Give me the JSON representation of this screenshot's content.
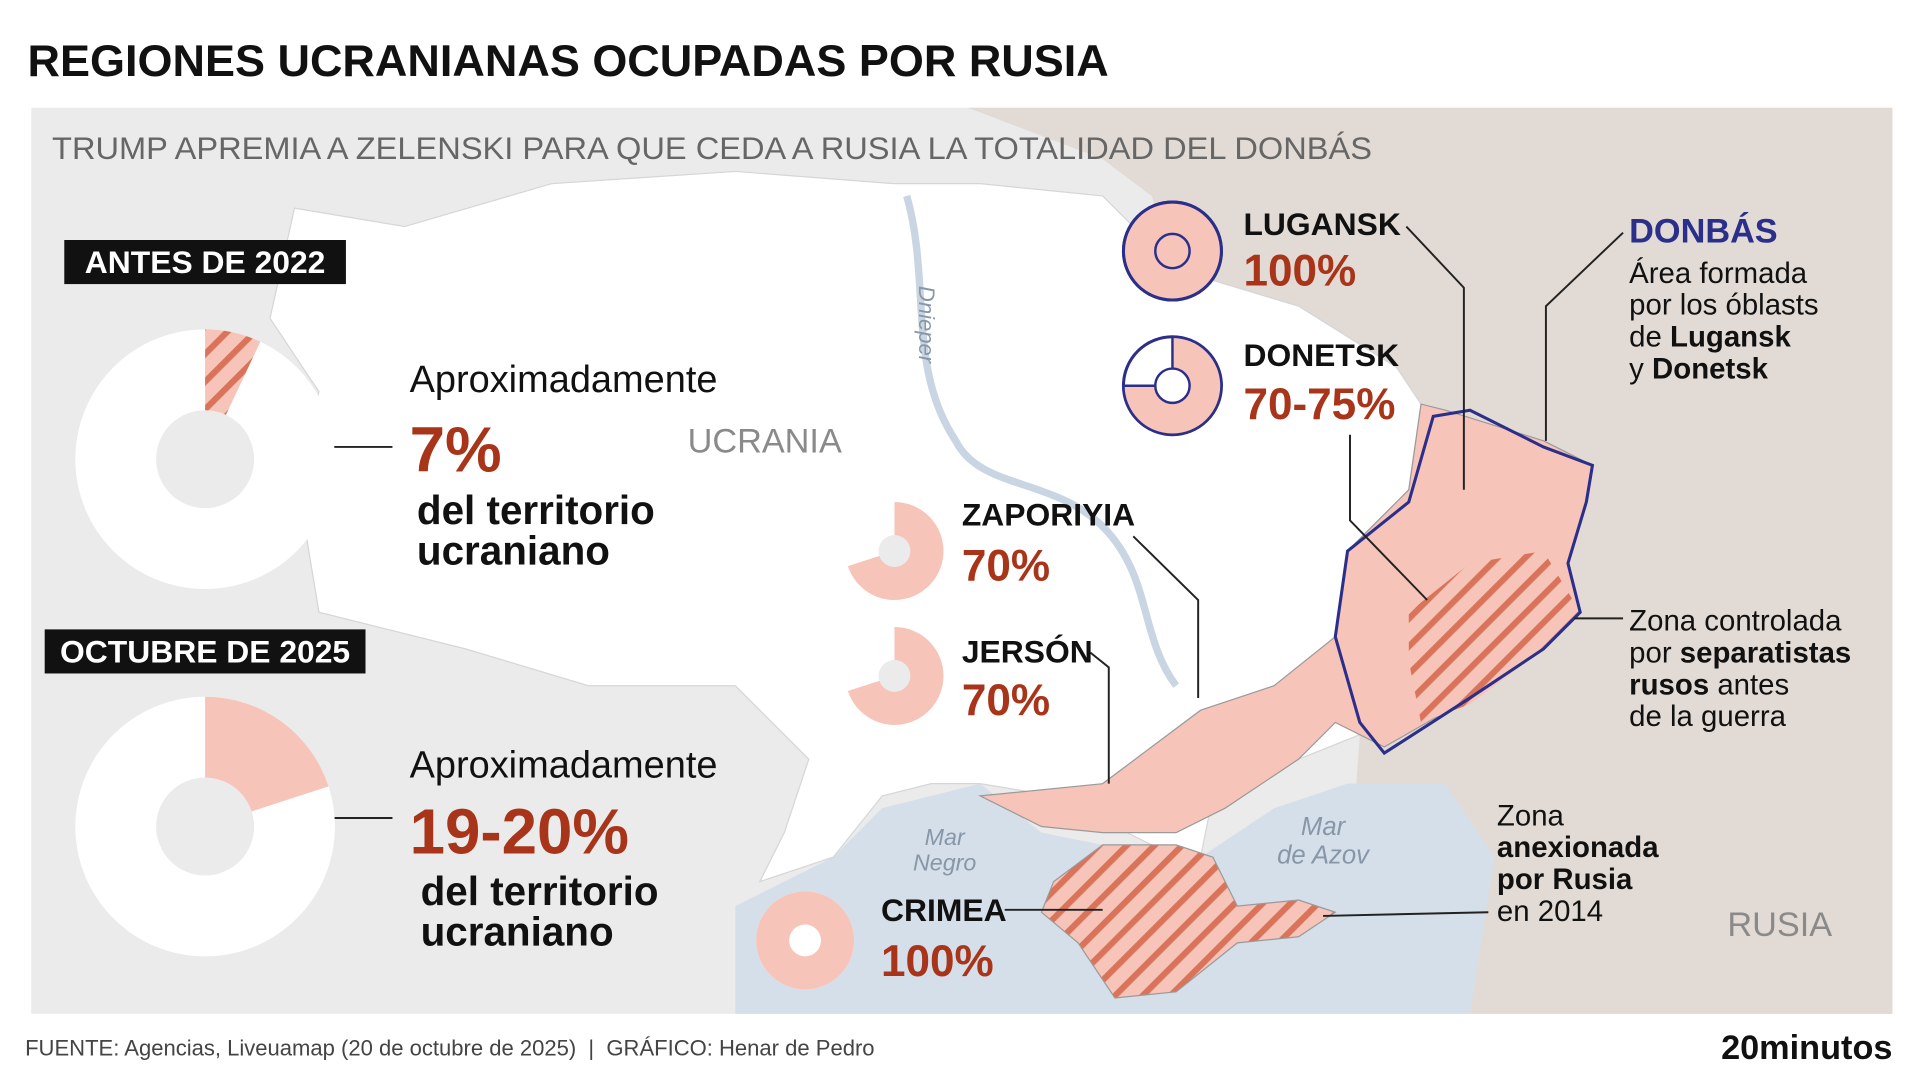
{
  "title": "REGIONES UCRANIANAS OCUPADAS POR RUSIA",
  "subtitle": "TRUMP APREMIA A ZELENSKI PARA QUE CEDA A RUSIA LA TOTALIDAD DEL DONBÁS",
  "overview": [
    {
      "heading": "ANTES DE 2022",
      "intro": "Aproximadamente",
      "values": [
        7
      ],
      "value_label": "7%",
      "lines": [
        "del territorio",
        "ucraniano"
      ]
    },
    {
      "heading": "OCTUBRE DE 2025",
      "intro": "Aproximadamente",
      "values": [
        19,
        20
      ],
      "value_label": "19-20%",
      "lines": [
        "del territorio",
        "ucraniano"
      ]
    }
  ],
  "regions": [
    {
      "name": "LUGANSK",
      "values": [
        100
      ],
      "value_label": "100%"
    },
    {
      "name": "DONETSK",
      "values": [
        70,
        75
      ],
      "value_label": "70-75%"
    },
    {
      "name": "ZAPORIYIA",
      "values": [
        70
      ],
      "value_label": "70%"
    },
    {
      "name": "JERSÓN",
      "values": [
        70
      ],
      "value_label": "70%"
    },
    {
      "name": "CRIMEA",
      "values": [
        100
      ],
      "value_label": "100%"
    }
  ],
  "map_labels": {
    "country": "UCRANIA",
    "neighbor": "RUSIA",
    "river": "Dnieper",
    "black_sea": [
      "Mar",
      "Negro"
    ],
    "azov": [
      "Mar",
      "de Azov"
    ]
  },
  "donbas": {
    "title": "DONBÁS",
    "lines": [
      [
        "Área formada"
      ],
      [
        "por los óblasts"
      ],
      [
        "de ",
        "Lugansk"
      ],
      [
        "y ",
        "Donetsk"
      ]
    ]
  },
  "separatist_note": {
    "lines": [
      [
        "Zona controlada"
      ],
      [
        "por ",
        "separatistas"
      ],
      [
        "rusos",
        " antes"
      ],
      [
        "de la guerra"
      ]
    ]
  },
  "annexed_note": {
    "lines": [
      [
        "Zona"
      ],
      [
        "anexionada"
      ],
      [
        "por Rusia"
      ],
      [
        "en 2014"
      ]
    ]
  },
  "footer": {
    "source": "FUENTE: Agencias, Liveuamap (20 de octubre de 2025)  |  GRÁFICO: Henar de Pedro",
    "brand": "20minutos"
  }
}
